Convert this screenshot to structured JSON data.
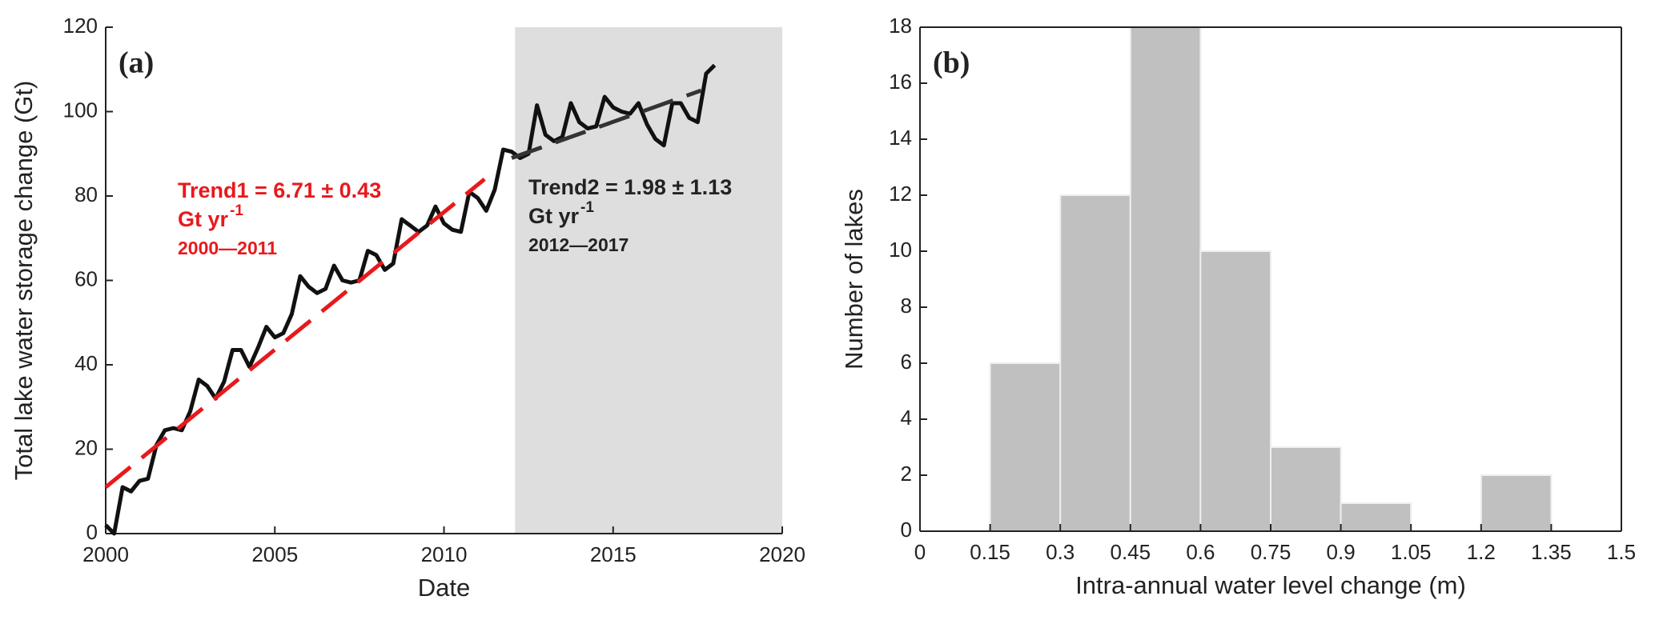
{
  "chart_data": [
    {
      "type": "line",
      "panel_label": "(a)",
      "x_label": "Date",
      "y_label": "Total lake water storage change  (Gt)",
      "xlim": [
        2000,
        2020
      ],
      "xticks": [
        2000,
        2005,
        2010,
        2015,
        2020
      ],
      "ylim": [
        0,
        120
      ],
      "yticks": [
        0,
        20,
        40,
        60,
        80,
        100,
        120
      ],
      "shaded_x": [
        2012.1,
        2020
      ],
      "shade_color": "#dedede",
      "series": [
        {
          "color": "#111111",
          "x": [
            2000,
            2000.25,
            2000.5,
            2000.75,
            2001,
            2001.25,
            2001.5,
            2001.75,
            2002,
            2002.25,
            2002.5,
            2002.75,
            2003,
            2003.25,
            2003.5,
            2003.75,
            2004,
            2004.25,
            2004.5,
            2004.75,
            2005,
            2005.25,
            2005.5,
            2005.75,
            2006,
            2006.25,
            2006.5,
            2006.75,
            2007,
            2007.25,
            2007.5,
            2007.75,
            2008,
            2008.25,
            2008.5,
            2008.75,
            2009,
            2009.25,
            2009.5,
            2009.75,
            2010,
            2010.25,
            2010.5,
            2010.75,
            2011,
            2011.25,
            2011.5,
            2011.75,
            2012,
            2012.25,
            2012.5,
            2012.75,
            2013,
            2013.25,
            2013.5,
            2013.75,
            2014,
            2014.25,
            2014.5,
            2014.75,
            2015,
            2015.25,
            2015.5,
            2015.75,
            2016,
            2016.25,
            2016.5,
            2016.75,
            2017,
            2017.25,
            2017.5,
            2017.75,
            2018
          ],
          "values": [
            2,
            0,
            11,
            10,
            12.5,
            13,
            21,
            24.5,
            25,
            24.5,
            29,
            36.5,
            35,
            32,
            36,
            43.5,
            43.5,
            39.5,
            44,
            49,
            46.5,
            47.5,
            52,
            61,
            58.5,
            57,
            58,
            63.5,
            60,
            59.5,
            60,
            67,
            66,
            62.5,
            64,
            74.5,
            73,
            71.5,
            73,
            77.5,
            73.5,
            72,
            71.5,
            81,
            79.5,
            76.5,
            81.5,
            91,
            90.5,
            89,
            90,
            101.5,
            94.5,
            93,
            94,
            102,
            97.5,
            96,
            96.5,
            103.5,
            101,
            100,
            99.5,
            102,
            97,
            93.5,
            92,
            102,
            102,
            98.5,
            97.5,
            109,
            111
          ]
        }
      ],
      "trends": [
        {
          "color": "#e8191c",
          "x": [
            2000,
            2011.2
          ],
          "values": [
            11,
            84
          ]
        },
        {
          "color": "#333333",
          "x": [
            2012,
            2017.6
          ],
          "values": [
            89,
            105
          ]
        }
      ],
      "annotations": [
        {
          "color": "#e8191c",
          "lines": [
            "Trend1 = 6.71 ± 0.43",
            "Gt yr",
            "2000—2011"
          ],
          "superscript": "-1"
        },
        {
          "color": "#222222",
          "lines": [
            "Trend2 = 1.98 ± 1.13",
            "Gt yr",
            "2012—2017"
          ],
          "superscript": "-1"
        }
      ]
    },
    {
      "type": "histogram",
      "panel_label": "(b)",
      "x_label": "Intra-annual water level change  (m)",
      "y_label": "Number of lakes",
      "color": "#c0c0c0",
      "bins": [
        0.15,
        0.3,
        0.45,
        0.6,
        0.75,
        0.9,
        1.05,
        1.2,
        1.35
      ],
      "counts": [
        6,
        12,
        18,
        10,
        3,
        1,
        0,
        2
      ],
      "xlim": [
        0,
        1.5
      ],
      "xticks": [
        0,
        0.15,
        0.3,
        0.45,
        0.6,
        0.75,
        0.9,
        1.05,
        1.2,
        1.35,
        1.5
      ],
      "ylim": [
        0,
        18
      ],
      "yticks": [
        0,
        2,
        4,
        6,
        8,
        10,
        12,
        14,
        16,
        18
      ]
    }
  ]
}
